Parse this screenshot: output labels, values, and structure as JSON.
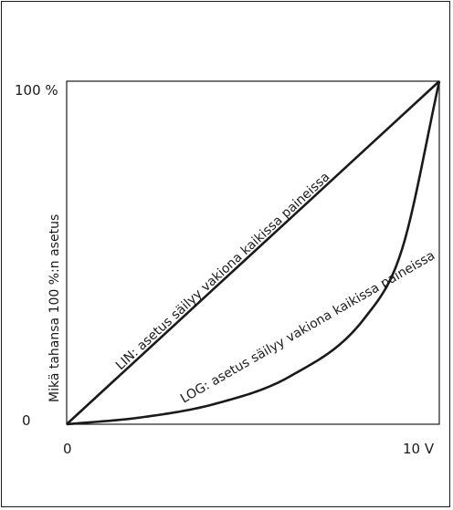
{
  "chart_data": {
    "type": "line",
    "title": "",
    "xlabel": "",
    "ylabel": "Mikä tahansa 100 %:n asetus",
    "x_ticks": [
      "0",
      "10 V"
    ],
    "y_ticks": [
      "0",
      "100 %"
    ],
    "xlim": [
      0,
      10
    ],
    "ylim": [
      0,
      100
    ],
    "grid": false,
    "series": [
      {
        "label": "LIN: asetus säilyy vakiona kaikissa paineissa",
        "kind": "linear",
        "x": [
          0,
          2,
          4,
          6,
          8,
          10
        ],
        "y": [
          0,
          20,
          40,
          60,
          80,
          100
        ]
      },
      {
        "label": "LOG: asetus säilyy vakiona kaikissa paineissa",
        "kind": "logarithmic",
        "x": [
          0,
          2,
          4,
          6,
          8,
          9,
          10
        ],
        "y": [
          0,
          2,
          6,
          14,
          31,
          51,
          100
        ]
      }
    ]
  },
  "colors": {
    "line": "#1a1a1a",
    "frame": "#1a1a1a"
  }
}
